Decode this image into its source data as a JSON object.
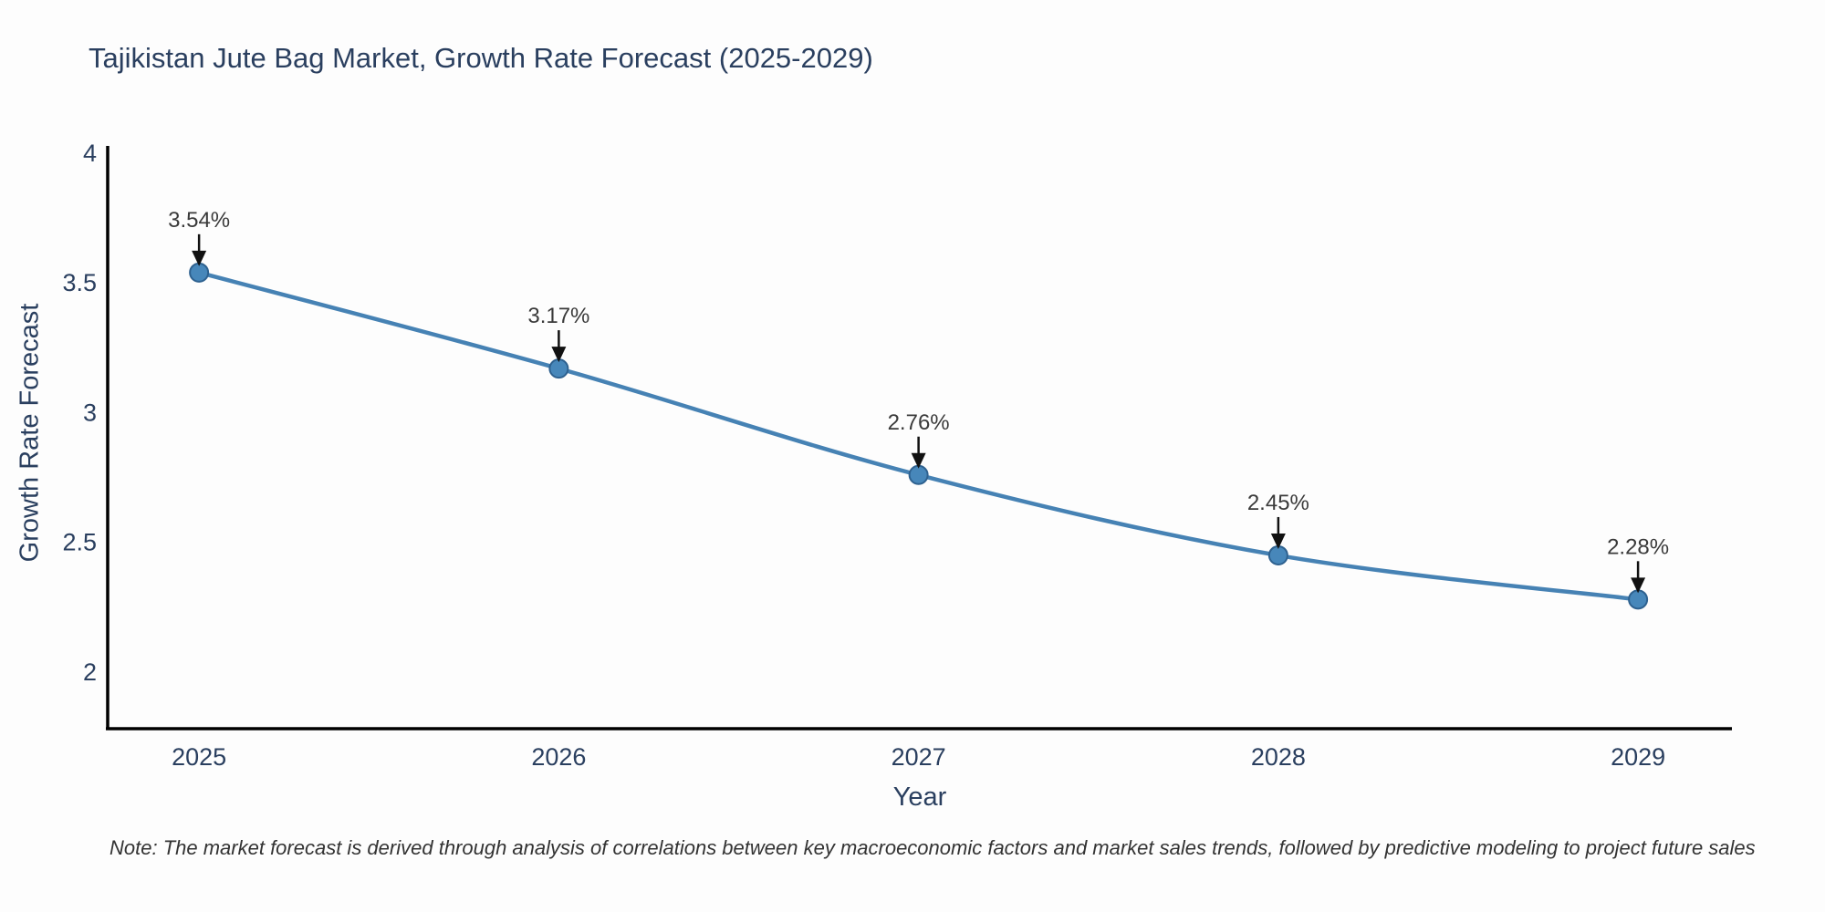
{
  "title": "Tajikistan Jute Bag Market, Growth Rate Forecast (2025-2029)",
  "note": "Note: The market forecast is derived through analysis of correlations between key macroeconomic factors and market sales trends, followed by predictive modeling to project future sales",
  "colors": {
    "background": "#fdfdfd",
    "text": "#2a3f5f",
    "axis_line": "#000000",
    "trend_line": "#4682b4",
    "marker_fill": "#4787ba",
    "marker_edge": "#2e618f",
    "annotation_text": "#3a3a3a",
    "annotation_arrow": "#111111"
  },
  "chart_data": {
    "type": "line",
    "title": "Tajikistan Jute Bag Market, Growth Rate Forecast (2025-2029)",
    "x": [
      2025,
      2026,
      2027,
      2028,
      2029
    ],
    "values": [
      3.54,
      3.17,
      2.76,
      2.45,
      2.28
    ],
    "point_labels": [
      "3.54%",
      "3.17%",
      "2.76%",
      "2.45%",
      "2.28%"
    ],
    "xlabel": "Year",
    "ylabel": "Growth Rate Forecast",
    "xtick_labels": [
      "2025",
      "2026",
      "2027",
      "2028",
      "2029"
    ],
    "ytick_values": [
      4,
      3.5,
      3,
      2.5,
      2
    ],
    "ytick_labels": [
      "4",
      "3.5",
      "3",
      "2.5",
      "2"
    ],
    "xlim": [
      2024.746,
      2029.261
    ],
    "ylim": [
      1.782,
      4.028
    ],
    "grid": false,
    "legend": false,
    "line_shape": "spline",
    "markers": true,
    "annotations_with_arrows": true
  }
}
